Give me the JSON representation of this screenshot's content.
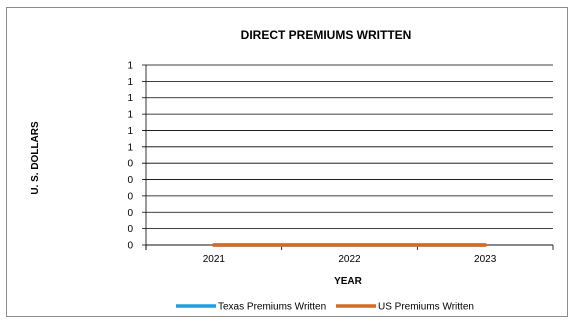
{
  "chart_data": {
    "type": "line",
    "title": "DIRECT PREMIUMS WRITTEN",
    "xlabel": "YEAR",
    "ylabel": "U. S. DOLLARS",
    "categories": [
      "2021",
      "2022",
      "2023"
    ],
    "y_tick_labels": [
      "0",
      "0",
      "0",
      "0",
      "0",
      "0",
      "1",
      "1",
      "1",
      "1",
      "1",
      "1"
    ],
    "ylim": [
      0,
      1.1
    ],
    "grid": true,
    "legend_placement": "bottom",
    "series": [
      {
        "name": "Texas Premiums Written",
        "values": [
          0,
          0,
          0
        ],
        "color": "#1f9ee8"
      },
      {
        "name": "US Premiums Written",
        "values": [
          0,
          0,
          0
        ],
        "color": "#d86a1f"
      }
    ]
  }
}
